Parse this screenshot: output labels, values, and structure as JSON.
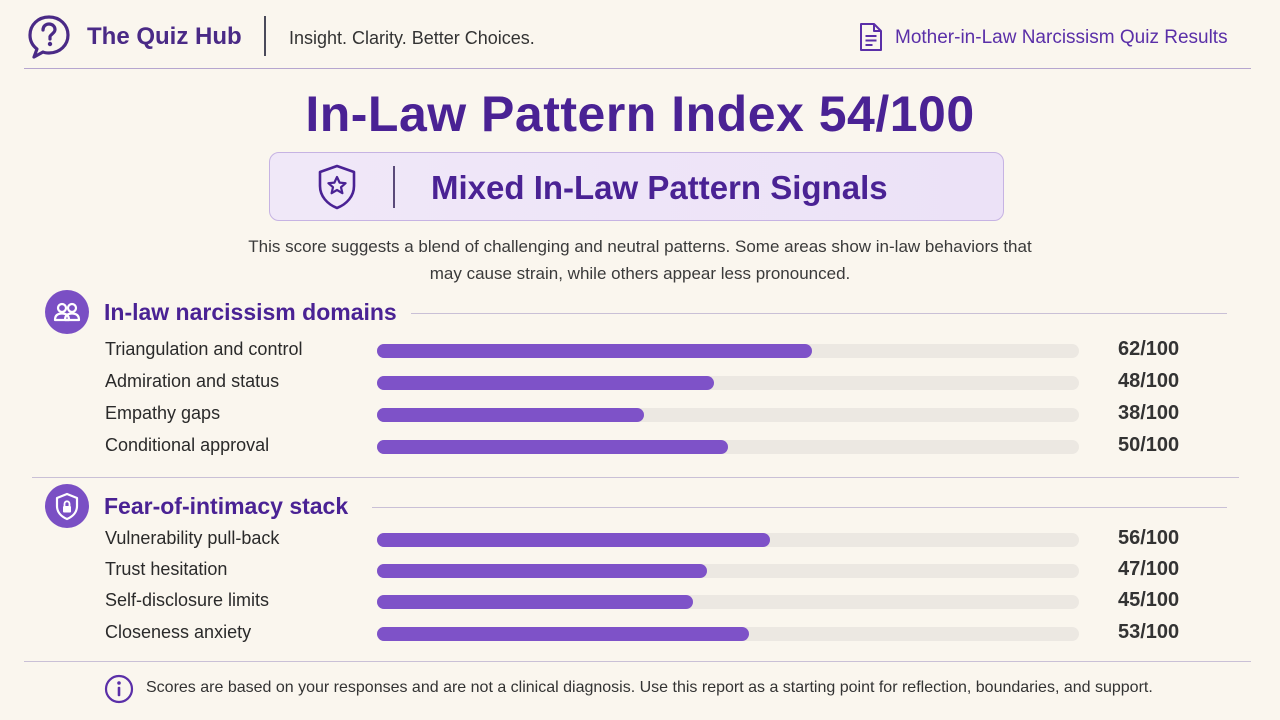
{
  "header": {
    "brand": "The Quiz Hub",
    "tagline": "Insight. Clarity. Better Choices.",
    "link": "Mother-in-Law Narcissism Quiz Results",
    "brand_icon": "question-bubble-icon",
    "link_icon": "document-icon"
  },
  "result": {
    "title": "In-Law Pattern Index 54/100",
    "score": 54,
    "badge_label": "Mixed In-Law Pattern Signals",
    "badge_icon": "shield-star-icon",
    "summary": "This score suggests a blend of challenging and neutral patterns. Some areas show in-law behaviors that may cause strain, while others appear less pronounced."
  },
  "sections": [
    {
      "title": "In-law narcissism domains",
      "icon": "people-icon",
      "items": [
        {
          "label": "Triangulation and control",
          "value": 62,
          "score_text": "62/100"
        },
        {
          "label": "Admiration and status",
          "value": 48,
          "score_text": "48/100"
        },
        {
          "label": "Empathy gaps",
          "value": 38,
          "score_text": "38/100"
        },
        {
          "label": "Conditional approval",
          "value": 50,
          "score_text": "50/100"
        }
      ]
    },
    {
      "title": "Fear-of-intimacy stack",
      "icon": "shield-lock-icon",
      "items": [
        {
          "label": "Vulnerability pull-back",
          "value": 56,
          "score_text": "56/100"
        },
        {
          "label": "Trust hesitation",
          "value": 47,
          "score_text": "47/100"
        },
        {
          "label": "Self-disclosure limits",
          "value": 45,
          "score_text": "45/100"
        },
        {
          "label": "Closeness anxiety",
          "value": 53,
          "score_text": "53/100"
        }
      ]
    }
  ],
  "footer": {
    "note": "Scores are based on your responses and are not a clinical diagnosis. Use this report as a starting point for reflection, boundaries, and support.",
    "icon": "info-icon"
  },
  "colors": {
    "accent": "#4a2294",
    "bar_fill": "#7e52c8",
    "bar_track": "#ece8e2",
    "background": "#faf6ee"
  }
}
